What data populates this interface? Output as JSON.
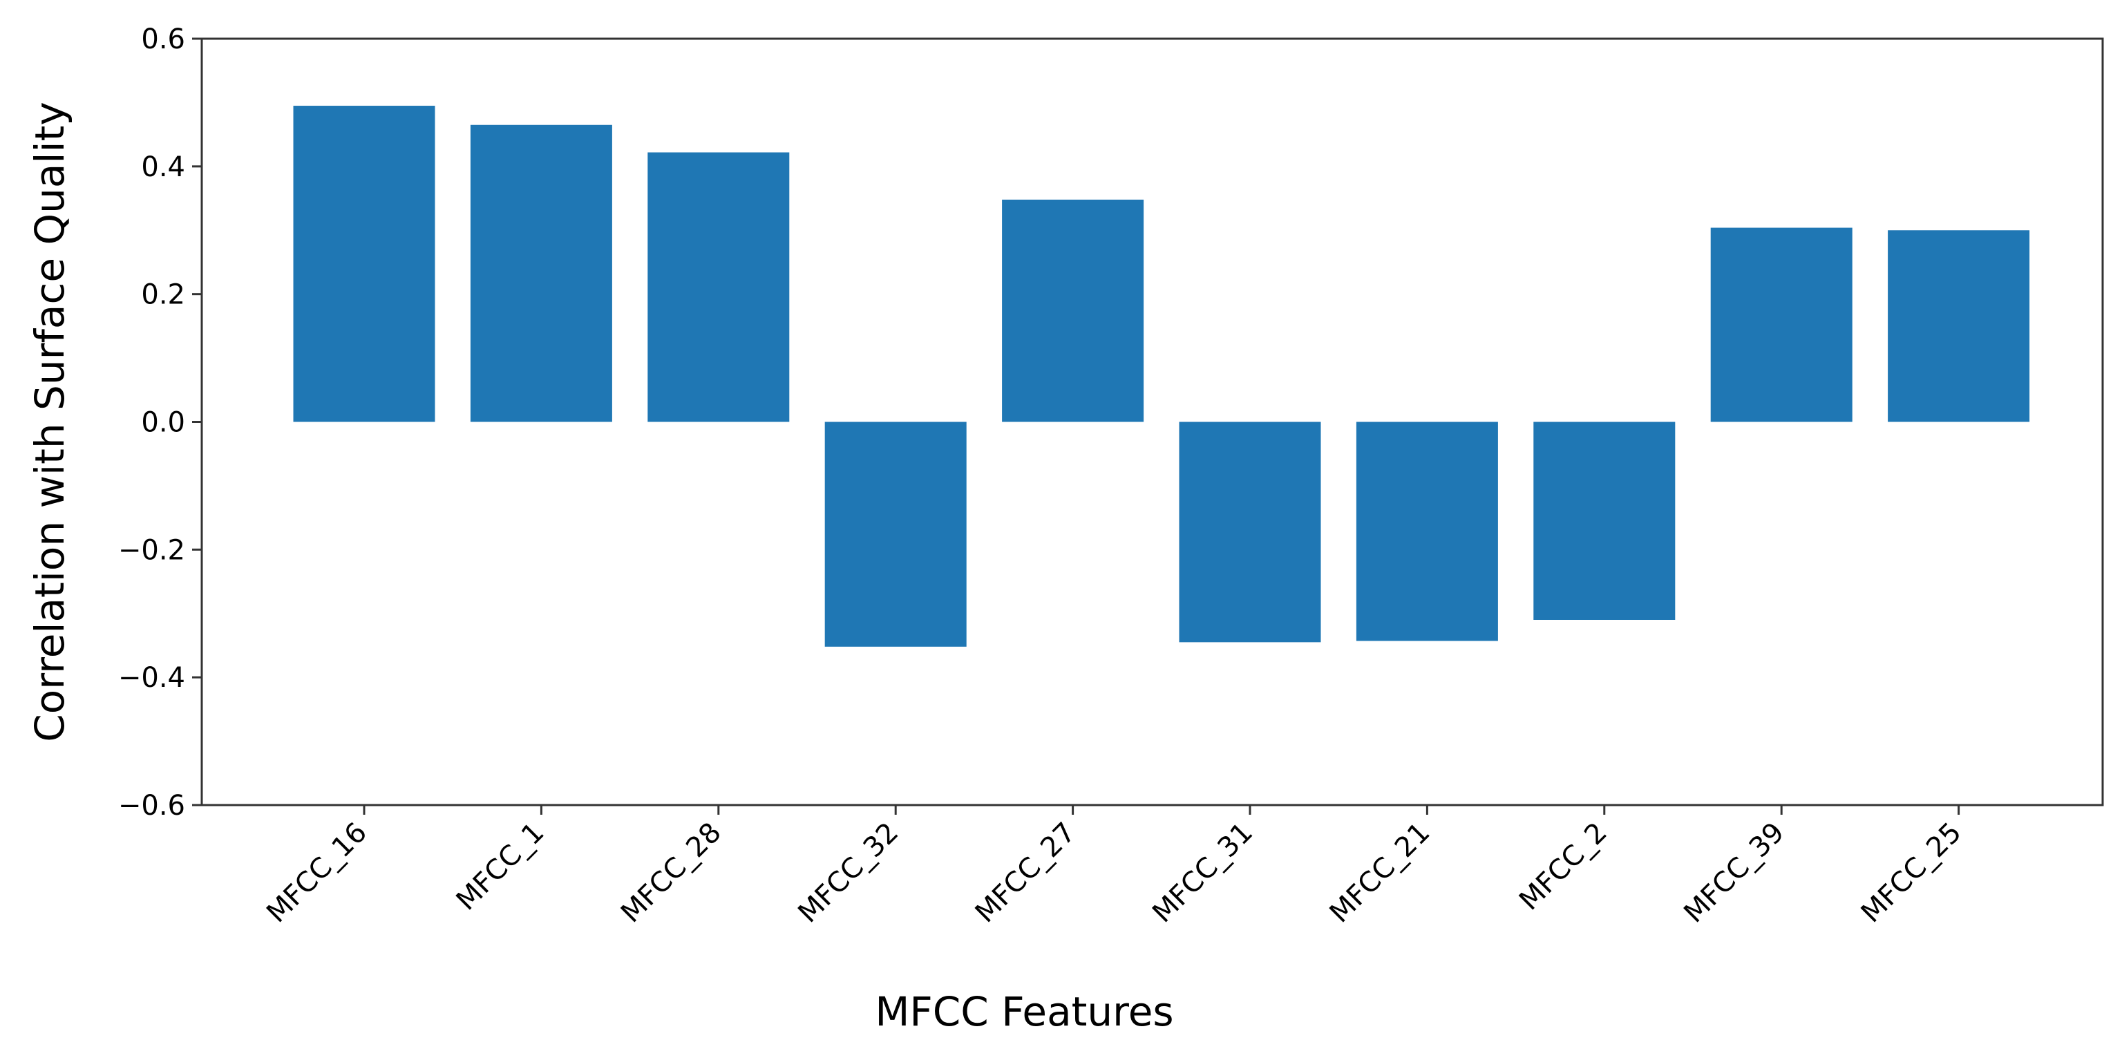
{
  "chart_data": {
    "type": "bar",
    "title": "",
    "xlabel": "MFCC Features",
    "ylabel": "Correlation with Surface Quality",
    "categories": [
      "MFCC_16",
      "MFCC_1",
      "MFCC_28",
      "MFCC_32",
      "MFCC_27",
      "MFCC_31",
      "MFCC_21",
      "MFCC_2",
      "MFCC_39",
      "MFCC_25"
    ],
    "values": [
      0.495,
      0.465,
      0.422,
      -0.352,
      0.348,
      -0.345,
      -0.343,
      -0.31,
      0.304,
      0.3
    ],
    "ylim": [
      -0.6,
      0.6
    ],
    "yticks": [
      0.6,
      0.4,
      0.2,
      0.0,
      -0.2,
      -0.4,
      -0.6
    ],
    "ytick_labels": [
      "0.6",
      "0.4",
      "0.2",
      "0.0",
      "−0.2",
      "−0.4",
      "−0.6"
    ],
    "grid": false,
    "bar_color": "#1f77b4"
  }
}
